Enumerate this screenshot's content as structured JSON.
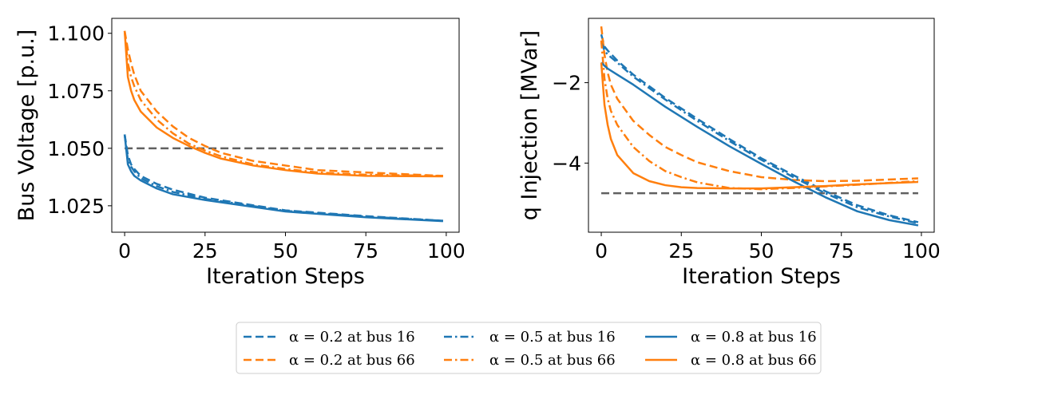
{
  "chart_data": [
    {
      "type": "line",
      "xlabel": "Iteration Steps",
      "ylabel": "Bus Voltage [p.u.]",
      "xlim": [
        -4,
        104
      ],
      "ylim": [
        1.0135,
        1.1065
      ],
      "xticks": [
        0,
        25,
        50,
        75,
        100
      ],
      "xtick_labels": [
        "0",
        "25",
        "50",
        "75",
        "100"
      ],
      "yticks": [
        1.025,
        1.05,
        1.075,
        1.1
      ],
      "ytick_labels": [
        "1.025",
        "1.050",
        "1.075",
        "1.100"
      ],
      "grid": false,
      "reference_line": {
        "y": 1.05,
        "x": [
          0,
          99
        ],
        "color": "#606060",
        "style": "dashed"
      },
      "series": [
        {
          "name": "α = 0.2 at bus 16",
          "color": "#1f77b4",
          "style": "dashed",
          "x": [
            0,
            1,
            2,
            3,
            5,
            10,
            15,
            25,
            50,
            75,
            99
          ],
          "y": [
            1.056,
            1.047,
            1.043,
            1.041,
            1.038,
            1.0345,
            1.032,
            1.0285,
            1.023,
            1.0205,
            1.0185
          ]
        },
        {
          "name": "α = 0.2 at bus 66",
          "color": "#ff7f0e",
          "style": "dashed",
          "x": [
            0,
            1,
            2,
            3,
            5,
            10,
            15,
            20,
            25,
            30,
            40,
            50,
            60,
            75,
            99
          ],
          "y": [
            1.101,
            1.093,
            1.087,
            1.082,
            1.075,
            1.066,
            1.0595,
            1.0545,
            1.051,
            1.048,
            1.0445,
            1.0425,
            1.0405,
            1.0395,
            1.038
          ]
        },
        {
          "name": "α = 0.5 at bus 16",
          "color": "#1f77b4",
          "style": "dashdot",
          "x": [
            0,
            1,
            2,
            3,
            5,
            10,
            15,
            25,
            50,
            75,
            99
          ],
          "y": [
            1.056,
            1.045,
            1.042,
            1.04,
            1.037,
            1.0335,
            1.031,
            1.028,
            1.0228,
            1.0203,
            1.0185
          ]
        },
        {
          "name": "α = 0.5 at bus 66",
          "color": "#ff7f0e",
          "style": "dashdot",
          "x": [
            0,
            1,
            2,
            3,
            5,
            10,
            15,
            20,
            25,
            30,
            40,
            50,
            60,
            75,
            99
          ],
          "y": [
            1.101,
            1.087,
            1.081,
            1.077,
            1.071,
            1.0625,
            1.0565,
            1.052,
            1.049,
            1.0465,
            1.043,
            1.041,
            1.0395,
            1.0385,
            1.038
          ]
        },
        {
          "name": "α = 0.8 at bus 16",
          "color": "#1f77b4",
          "style": "solid",
          "x": [
            0,
            1,
            2,
            3,
            5,
            10,
            15,
            25,
            50,
            75,
            99
          ],
          "y": [
            1.056,
            1.043,
            1.04,
            1.038,
            1.036,
            1.0325,
            1.03,
            1.0275,
            1.0225,
            1.02,
            1.0183
          ]
        },
        {
          "name": "α = 0.8 at bus 66",
          "color": "#ff7f0e",
          "style": "solid",
          "x": [
            0,
            1,
            2,
            3,
            5,
            10,
            15,
            20,
            25,
            30,
            40,
            50,
            60,
            75,
            99
          ],
          "y": [
            1.101,
            1.081,
            1.075,
            1.071,
            1.066,
            1.059,
            1.0545,
            1.051,
            1.048,
            1.0455,
            1.0425,
            1.0405,
            1.039,
            1.038,
            1.0378
          ]
        }
      ]
    },
    {
      "type": "line",
      "xlabel": "Iteration Steps",
      "ylabel": "q Injection [MVar]",
      "xlim": [
        -4,
        104
      ],
      "ylim": [
        -5.72,
        -0.4
      ],
      "xticks": [
        0,
        25,
        50,
        75,
        100
      ],
      "xtick_labels": [
        "0",
        "25",
        "50",
        "75",
        "100"
      ],
      "yticks": [
        -4,
        -2
      ],
      "ytick_labels": [
        "−4",
        "−2"
      ],
      "grid": false,
      "reference_line": {
        "y": -4.75,
        "x": [
          0,
          99
        ],
        "color": "#606060",
        "style": "dashed"
      },
      "series": [
        {
          "name": "α = 0.2 at bus 16",
          "color": "#1f77b4",
          "style": "dashed",
          "x": [
            0,
            1,
            2,
            5,
            10,
            20,
            30,
            40,
            50,
            60,
            70,
            80,
            90,
            99
          ],
          "y": [
            -0.8,
            -1.1,
            -1.2,
            -1.45,
            -1.8,
            -2.38,
            -2.9,
            -3.4,
            -3.88,
            -4.3,
            -4.7,
            -5.05,
            -5.3,
            -5.47
          ]
        },
        {
          "name": "α = 0.2 at bus 66",
          "color": "#ff7f0e",
          "style": "dashed",
          "x": [
            0,
            1,
            2,
            3,
            5,
            10,
            15,
            20,
            25,
            30,
            40,
            50,
            60,
            70,
            80,
            99
          ],
          "y": [
            -0.6,
            -1.3,
            -1.75,
            -2.05,
            -2.4,
            -2.95,
            -3.3,
            -3.6,
            -3.8,
            -3.98,
            -4.2,
            -4.35,
            -4.42,
            -4.45,
            -4.44,
            -4.38
          ]
        },
        {
          "name": "α = 0.5 at bus 16",
          "color": "#1f77b4",
          "style": "dashdot",
          "x": [
            0,
            1,
            2,
            5,
            10,
            20,
            30,
            40,
            50,
            60,
            70,
            80,
            90,
            99
          ],
          "y": [
            -1.0,
            -1.2,
            -1.3,
            -1.5,
            -1.85,
            -2.42,
            -2.95,
            -3.45,
            -3.92,
            -4.35,
            -4.75,
            -5.1,
            -5.33,
            -5.5
          ]
        },
        {
          "name": "α = 0.5 at bus 66",
          "color": "#ff7f0e",
          "style": "dashdot",
          "x": [
            0,
            1,
            2,
            3,
            5,
            10,
            15,
            20,
            25,
            30,
            40,
            50,
            60,
            70,
            80,
            99
          ],
          "y": [
            -0.95,
            -1.9,
            -2.4,
            -2.7,
            -3.05,
            -3.6,
            -3.95,
            -4.2,
            -4.35,
            -4.48,
            -4.62,
            -4.65,
            -4.62,
            -4.58,
            -4.54,
            -4.45
          ]
        },
        {
          "name": "α = 0.8 at bus 16",
          "color": "#1f77b4",
          "style": "solid",
          "x": [
            0,
            1,
            2,
            5,
            10,
            20,
            30,
            40,
            50,
            60,
            70,
            80,
            90,
            99
          ],
          "y": [
            -1.5,
            -1.58,
            -1.65,
            -1.8,
            -2.05,
            -2.6,
            -3.1,
            -3.58,
            -4.02,
            -4.45,
            -4.85,
            -5.2,
            -5.42,
            -5.55
          ]
        },
        {
          "name": "α = 0.8 at bus 66",
          "color": "#ff7f0e",
          "style": "solid",
          "x": [
            0,
            1,
            2,
            3,
            5,
            10,
            15,
            20,
            25,
            30,
            40,
            50,
            60,
            70,
            80,
            99
          ],
          "y": [
            -1.5,
            -2.55,
            -3.05,
            -3.4,
            -3.8,
            -4.25,
            -4.45,
            -4.55,
            -4.6,
            -4.62,
            -4.63,
            -4.63,
            -4.6,
            -4.57,
            -4.53,
            -4.47
          ]
        }
      ]
    }
  ],
  "legend": {
    "placement": "bottom-center",
    "ncol": 3,
    "entries": [
      {
        "label": "α = 0.2 at bus 16",
        "color": "#1f77b4",
        "style": "dashed"
      },
      {
        "label": "α = 0.2 at bus 66",
        "color": "#ff7f0e",
        "style": "dashed"
      },
      {
        "label": "α = 0.5 at bus 16",
        "color": "#1f77b4",
        "style": "dashdot"
      },
      {
        "label": "α = 0.5 at bus 66",
        "color": "#ff7f0e",
        "style": "dashdot"
      },
      {
        "label": "α = 0.8 at bus 16",
        "color": "#1f77b4",
        "style": "solid"
      },
      {
        "label": "α = 0.8 at bus 66",
        "color": "#ff7f0e",
        "style": "solid"
      }
    ]
  }
}
